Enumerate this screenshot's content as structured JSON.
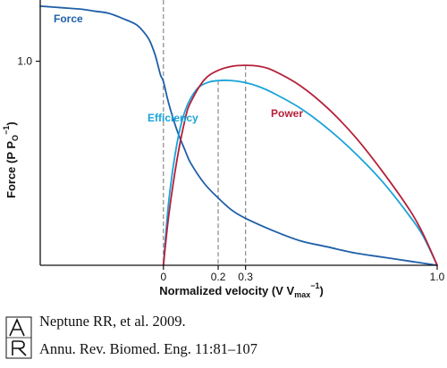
{
  "chart_data": {
    "type": "line",
    "xlabel": {
      "main": "Normalized velocity (V V",
      "sub": "max",
      "sup": "−1",
      "close": ")"
    },
    "ylabel": {
      "main": "Force (P P",
      "sub": "O",
      "sup": "−1",
      "close": ")"
    },
    "xlim": [
      -0.45,
      1.0
    ],
    "ylim": [
      0,
      1.3
    ],
    "x_ticks": [
      {
        "value": 0,
        "label": "0"
      },
      {
        "value": 0.2,
        "label": "0.2"
      },
      {
        "value": 0.3,
        "label": "0.3"
      },
      {
        "value": 1.0,
        "label": "1.0"
      }
    ],
    "y_ticks": [
      {
        "value": 1.0,
        "label": "1.0"
      }
    ],
    "reference_lines_x": [
      0,
      0.2,
      0.3
    ],
    "series": [
      {
        "name": "Force",
        "color": "#1f5fa8",
        "x": [
          -0.45,
          -0.4,
          -0.35,
          -0.3,
          -0.25,
          -0.2,
          -0.15,
          -0.1,
          -0.07,
          -0.05,
          -0.03,
          -0.02,
          -0.01,
          0.0,
          0.02,
          0.05,
          0.08,
          0.1,
          0.15,
          0.2,
          0.25,
          0.3,
          0.4,
          0.5,
          0.6,
          0.7,
          0.8,
          0.9,
          1.0
        ],
        "y": [
          1.27,
          1.265,
          1.26,
          1.255,
          1.245,
          1.235,
          1.21,
          1.18,
          1.14,
          1.1,
          1.03,
          0.98,
          0.93,
          0.9,
          0.79,
          0.66,
          0.56,
          0.5,
          0.4,
          0.33,
          0.27,
          0.23,
          0.17,
          0.12,
          0.09,
          0.06,
          0.04,
          0.02,
          0.0
        ]
      },
      {
        "name": "Efficiency",
        "color": "#1aa3d9",
        "x": [
          0,
          0.02,
          0.05,
          0.08,
          0.12,
          0.16,
          0.2,
          0.25,
          0.3,
          0.35,
          0.4,
          0.5,
          0.6,
          0.7,
          0.8,
          0.9,
          0.95,
          1.0
        ],
        "y": [
          0,
          0.32,
          0.6,
          0.76,
          0.86,
          0.895,
          0.905,
          0.905,
          0.895,
          0.875,
          0.845,
          0.77,
          0.67,
          0.55,
          0.41,
          0.24,
          0.14,
          0.0
        ]
      },
      {
        "name": "Power",
        "color": "#b5203a",
        "x": [
          0,
          0.02,
          0.05,
          0.08,
          0.1,
          0.15,
          0.2,
          0.25,
          0.3,
          0.35,
          0.4,
          0.5,
          0.6,
          0.7,
          0.8,
          0.9,
          0.95,
          1.0
        ],
        "y": [
          0,
          0.25,
          0.52,
          0.72,
          0.8,
          0.91,
          0.955,
          0.975,
          0.98,
          0.975,
          0.955,
          0.88,
          0.77,
          0.63,
          0.46,
          0.27,
          0.15,
          0.0
        ]
      }
    ]
  },
  "labels": {
    "force": "Force",
    "efficiency": "Efficiency",
    "power": "Power"
  },
  "citation": {
    "line1": "Neptune RR, et al. 2009.",
    "line2": "Annu. Rev. Biomed. Eng. 11:81–107"
  },
  "colors": {
    "axis": "#111111",
    "dashed": "#888888"
  }
}
